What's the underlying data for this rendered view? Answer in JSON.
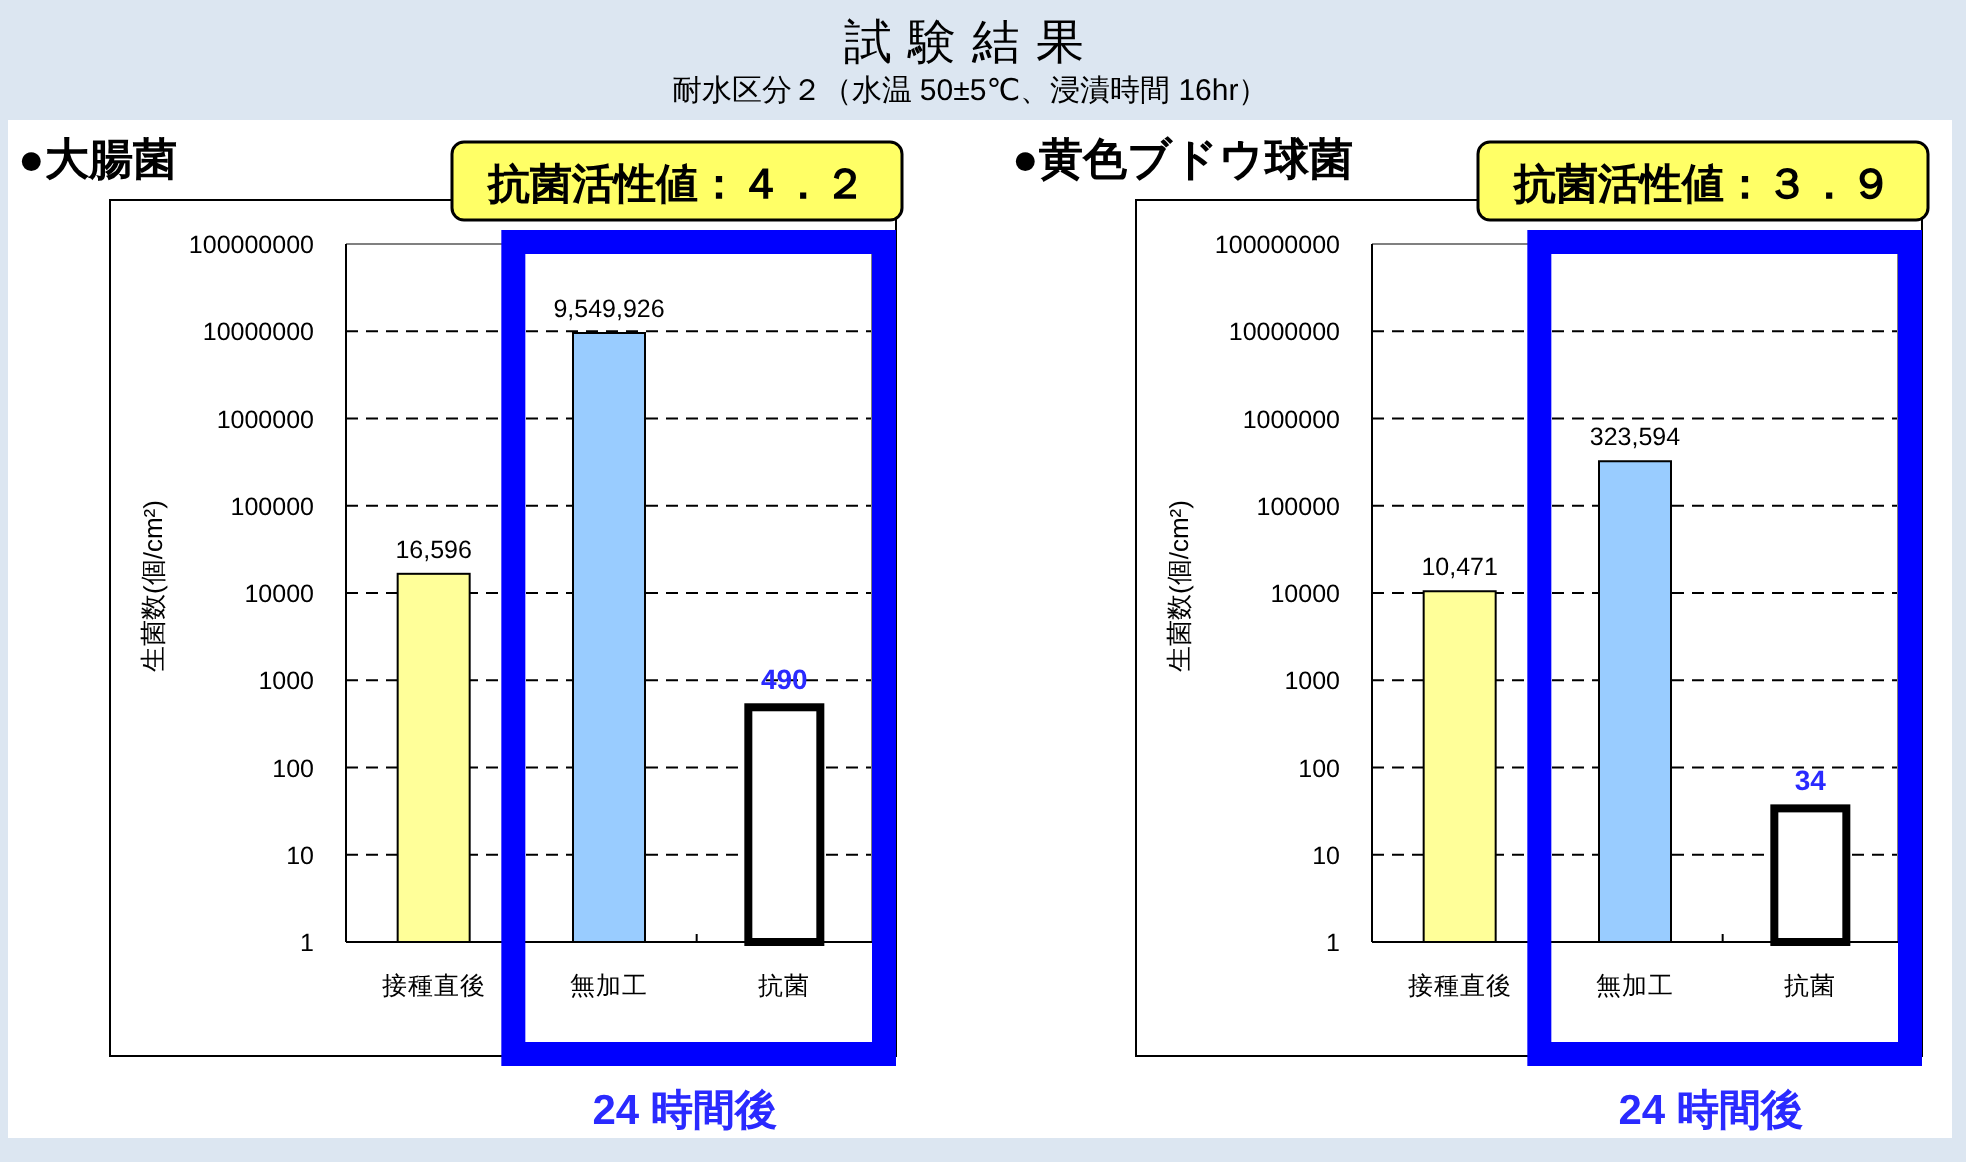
{
  "chart_data": [
    {
      "type": "other",
      "title": "試験結果",
      "subtitle": "耐水区分２（水温 50±5℃、浸漬時間 16hr）"
    },
    {
      "type": "bar",
      "title": "●大腸菌",
      "ylabel": "生菌数(個/cm²)",
      "categories": [
        "接種直後",
        "無加工",
        "抗菌"
      ],
      "values": [
        16596,
        9549926,
        490
      ],
      "colors": [
        "#ffff99",
        "#99ccff",
        "#ffffff"
      ],
      "value_labels": [
        "16,596",
        "9,549,926",
        "490"
      ],
      "log": true,
      "ylim": [
        1,
        100000000
      ],
      "yticks": [
        1,
        10,
        100,
        1000,
        10000,
        100000,
        1000000,
        10000000,
        100000000
      ],
      "grid": "y",
      "annotations": [
        "抗菌活性値：４．２",
        "24 時間後"
      ]
    },
    {
      "type": "bar",
      "title": "●黄色ブドウ球菌",
      "ylabel": "生菌数(個/cm²)",
      "categories": [
        "接種直後",
        "無加工",
        "抗菌"
      ],
      "values": [
        10471,
        323594,
        34
      ],
      "colors": [
        "#ffff99",
        "#99ccff",
        "#ffffff"
      ],
      "value_labels": [
        "10,471",
        "323,594",
        "34"
      ],
      "log": true,
      "ylim": [
        1,
        100000000
      ],
      "yticks": [
        1,
        10,
        100,
        1000,
        10000,
        100000,
        1000000,
        10000000,
        100000000
      ],
      "grid": "y",
      "annotations": [
        "抗菌活性値：３．９",
        "24 時間後"
      ]
    }
  ]
}
